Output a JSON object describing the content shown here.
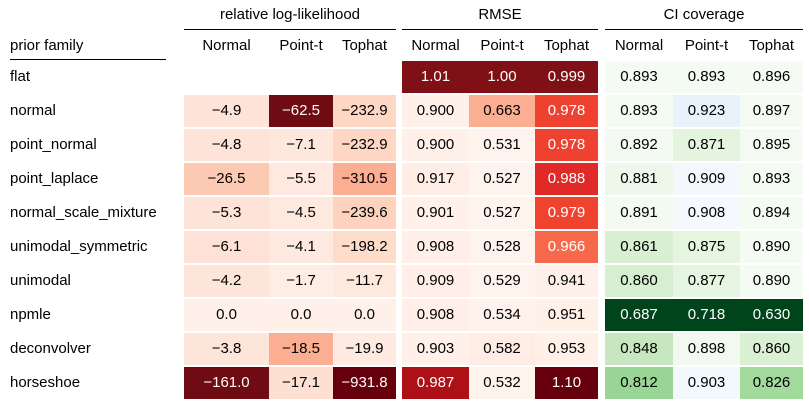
{
  "row_header": "prior family",
  "groups": [
    {
      "title": "relative log-likelihood",
      "columns": [
        "Normal",
        "Point-t",
        "Tophat"
      ]
    },
    {
      "title": "RMSE",
      "columns": [
        "Normal",
        "Point-t",
        "Tophat"
      ]
    },
    {
      "title": "CI coverage",
      "columns": [
        "Normal",
        "Point-t",
        "Tophat"
      ]
    }
  ],
  "rows": [
    {
      "label": "flat",
      "values": [
        "",
        "",
        "",
        "1.01",
        "1.00",
        "0.999",
        "0.893",
        "0.893",
        "0.896"
      ]
    },
    {
      "label": "normal",
      "values": [
        "−4.9",
        "−62.5",
        "−232.9",
        "0.900",
        "0.663",
        "0.978",
        "0.893",
        "0.923",
        "0.897"
      ]
    },
    {
      "label": "point_normal",
      "values": [
        "−4.8",
        "−7.1",
        "−232.9",
        "0.900",
        "0.531",
        "0.978",
        "0.892",
        "0.871",
        "0.895"
      ]
    },
    {
      "label": "point_laplace",
      "values": [
        "−26.5",
        "−5.5",
        "−310.5",
        "0.917",
        "0.527",
        "0.988",
        "0.881",
        "0.909",
        "0.893"
      ]
    },
    {
      "label": "normal_scale_mixture",
      "values": [
        "−5.3",
        "−4.5",
        "−239.6",
        "0.901",
        "0.527",
        "0.979",
        "0.891",
        "0.908",
        "0.894"
      ]
    },
    {
      "label": "unimodal_symmetric",
      "values": [
        "−6.1",
        "−4.1",
        "−198.2",
        "0.908",
        "0.528",
        "0.966",
        "0.861",
        "0.875",
        "0.890"
      ]
    },
    {
      "label": "unimodal",
      "values": [
        "−4.2",
        "−1.7",
        "−11.7",
        "0.909",
        "0.529",
        "0.941",
        "0.860",
        "0.877",
        "0.890"
      ]
    },
    {
      "label": "npmle",
      "values": [
        "0.0",
        "0.0",
        "0.0",
        "0.908",
        "0.534",
        "0.951",
        "0.687",
        "0.718",
        "0.630"
      ]
    },
    {
      "label": "deconvolver",
      "values": [
        "−3.8",
        "−18.5",
        "−19.9",
        "0.903",
        "0.582",
        "0.953",
        "0.848",
        "0.898",
        "0.860"
      ]
    },
    {
      "label": "horseshoe",
      "values": [
        "−161.0",
        "−17.1",
        "−931.8",
        "0.987",
        "0.532",
        "1.10",
        "0.812",
        "0.903",
        "0.826"
      ]
    }
  ],
  "cell_colors": [
    [
      "#ffffff",
      "#ffffff",
      "#ffffff",
      "#7f1016",
      "#7f1016",
      "#7f1016",
      "#f4fbf2",
      "#f4fbf2",
      "#f5fbf3"
    ],
    [
      "#fee4d8",
      "#6f0b12",
      "#fdd7c4",
      "#fff1ea",
      "#fcae93",
      "#ef4130",
      "#f4fbf2",
      "#e9f2fb",
      "#f5fbf3"
    ],
    [
      "#fee4d8",
      "#fee8de",
      "#fdd7c4",
      "#fff1ea",
      "#fff3ee",
      "#ef4130",
      "#f3faf1",
      "#e4f4de",
      "#f5fbf3"
    ],
    [
      "#fcc9b2",
      "#fee8df",
      "#fcae93",
      "#ffeee6",
      "#fff3ee",
      "#df2a27",
      "#edf8ea",
      "#f4f7fc",
      "#f4fbf2"
    ],
    [
      "#fee4d8",
      "#fee9df",
      "#fdd3be",
      "#fff1ea",
      "#fff3ee",
      "#ef4330",
      "#f3faf1",
      "#f5f8fc",
      "#f4fbf2"
    ],
    [
      "#fee2d5",
      "#fee9e0",
      "#fddcca",
      "#ffefe8",
      "#fff3ee",
      "#f7694a",
      "#d8efd2",
      "#e5f5e0",
      "#f4fbf2"
    ],
    [
      "#fee5d9",
      "#feede5",
      "#fee9df",
      "#ffefe8",
      "#fff3ee",
      "#fff0e9",
      "#d7efd1",
      "#e6f5e1",
      "#f4fbf2"
    ],
    [
      "#fff1ea",
      "#fff1ea",
      "#fff1ea",
      "#ffefe8",
      "#fff2ec",
      "#fff0e8",
      "#00441b",
      "#00441b",
      "#00441b"
    ],
    [
      "#fee5d9",
      "#fcae93",
      "#feeae1",
      "#fff0e9",
      "#ffede5",
      "#fff0e8",
      "#c6e7bf",
      "#f2f9f0",
      "#d9f0d3"
    ],
    [
      "#6f0b12",
      "#fee0d2",
      "#67000d",
      "#ad1117",
      "#fff3ee",
      "#67000d",
      "#99d595",
      "#f2f8fb",
      "#a2d99c"
    ]
  ],
  "cell_text_colors": [
    [
      "#000",
      "#000",
      "#000",
      "#fff",
      "#fff",
      "#fff",
      "#000",
      "#000",
      "#000"
    ],
    [
      "#000",
      "#fff",
      "#000",
      "#000",
      "#000",
      "#fff",
      "#000",
      "#000",
      "#000"
    ],
    [
      "#000",
      "#000",
      "#000",
      "#000",
      "#000",
      "#fff",
      "#000",
      "#000",
      "#000"
    ],
    [
      "#000",
      "#000",
      "#000",
      "#000",
      "#000",
      "#fff",
      "#000",
      "#000",
      "#000"
    ],
    [
      "#000",
      "#000",
      "#000",
      "#000",
      "#000",
      "#fff",
      "#000",
      "#000",
      "#000"
    ],
    [
      "#000",
      "#000",
      "#000",
      "#000",
      "#000",
      "#fff",
      "#000",
      "#000",
      "#000"
    ],
    [
      "#000",
      "#000",
      "#000",
      "#000",
      "#000",
      "#000",
      "#000",
      "#000",
      "#000"
    ],
    [
      "#000",
      "#000",
      "#000",
      "#000",
      "#000",
      "#000",
      "#fff",
      "#fff",
      "#fff"
    ],
    [
      "#000",
      "#000",
      "#000",
      "#000",
      "#000",
      "#000",
      "#000",
      "#000",
      "#000"
    ],
    [
      "#fff",
      "#000",
      "#fff",
      "#fff",
      "#000",
      "#fff",
      "#000",
      "#000",
      "#000"
    ]
  ]
}
